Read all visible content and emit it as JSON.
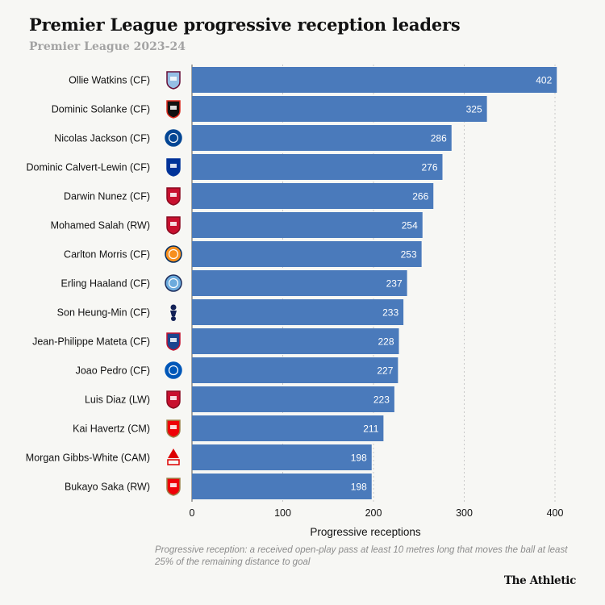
{
  "header": {
    "title": "Premier League progressive reception leaders",
    "subtitle": "Premier League 2023-24"
  },
  "footer": {
    "note": "Progressive reception: a received open-play pass at least 10 metres long that moves the ball at least 25% of the remaining distance to goal",
    "brand": "The Athletic"
  },
  "colors": {
    "bar": "#4a7abb",
    "grid": "#c8c8c8",
    "value_label": "#ffffff"
  },
  "chart_data": {
    "type": "bar",
    "orientation": "horizontal",
    "title": "Premier League progressive reception leaders",
    "subtitle": "Premier League 2023-24",
    "xlabel": "Progressive receptions",
    "ylabel": "",
    "xlim": [
      0,
      410
    ],
    "xticks": [
      0,
      100,
      200,
      300,
      400
    ],
    "grid": "vertical dotted",
    "legend": "none",
    "categories": [
      "Ollie Watkins (CF)",
      "Dominic Solanke (CF)",
      "Nicolas Jackson (CF)",
      "Dominic Calvert-Lewin (CF)",
      "Darwin Nunez (CF)",
      "Mohamed Salah (RW)",
      "Carlton Morris (CF)",
      "Erling Haaland (CF)",
      "Son Heung-Min (CF)",
      "Jean-Philippe Mateta (CF)",
      "Joao Pedro (CF)",
      "Luis Diaz (LW)",
      "Kai Havertz (CM)",
      "Morgan Gibbs-White (CAM)",
      "Bukayo Saka (RW)"
    ],
    "values": [
      402,
      325,
      286,
      276,
      266,
      254,
      253,
      237,
      233,
      228,
      227,
      223,
      211,
      198,
      198
    ],
    "badges": [
      "aston-villa-crest-icon",
      "bournemouth-crest-icon",
      "chelsea-crest-icon",
      "everton-crest-icon",
      "liverpool-crest-icon",
      "liverpool-crest-icon",
      "luton-crest-icon",
      "man-city-crest-icon",
      "tottenham-crest-icon",
      "crystal-palace-crest-icon",
      "brighton-crest-icon",
      "liverpool-crest-icon",
      "arsenal-crest-icon",
      "nottingham-forest-crest-icon",
      "arsenal-crest-icon"
    ]
  }
}
